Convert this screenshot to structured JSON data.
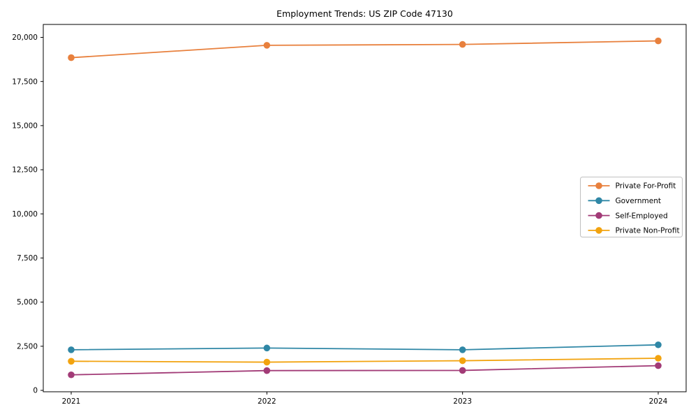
{
  "chart_data": {
    "type": "line",
    "title": "Employment Trends: US ZIP Code 47130",
    "categories": [
      "2021",
      "2022",
      "2023",
      "2024"
    ],
    "series": [
      {
        "name": "Private For-Profit",
        "color": "#E8803D",
        "values": [
          18850,
          19550,
          19600,
          19800
        ]
      },
      {
        "name": "Government",
        "color": "#2F87A6",
        "values": [
          2300,
          2400,
          2300,
          2580
        ]
      },
      {
        "name": "Self-Employed",
        "color": "#A23B77",
        "values": [
          880,
          1120,
          1130,
          1400
        ]
      },
      {
        "name": "Private Non-Profit",
        "color": "#F2A30F",
        "values": [
          1650,
          1600,
          1680,
          1820
        ]
      }
    ],
    "xlabel": "",
    "ylabel": "",
    "ylim": [
      0,
      20700
    ],
    "y_ticks": [
      0,
      2500,
      5000,
      7500,
      10000,
      12500,
      15000,
      17500,
      20000
    ],
    "grid": false,
    "legend_position": "center-right",
    "marker": "circle",
    "axis_color": "#000000",
    "legend_border_color": "#c0c0c0"
  }
}
